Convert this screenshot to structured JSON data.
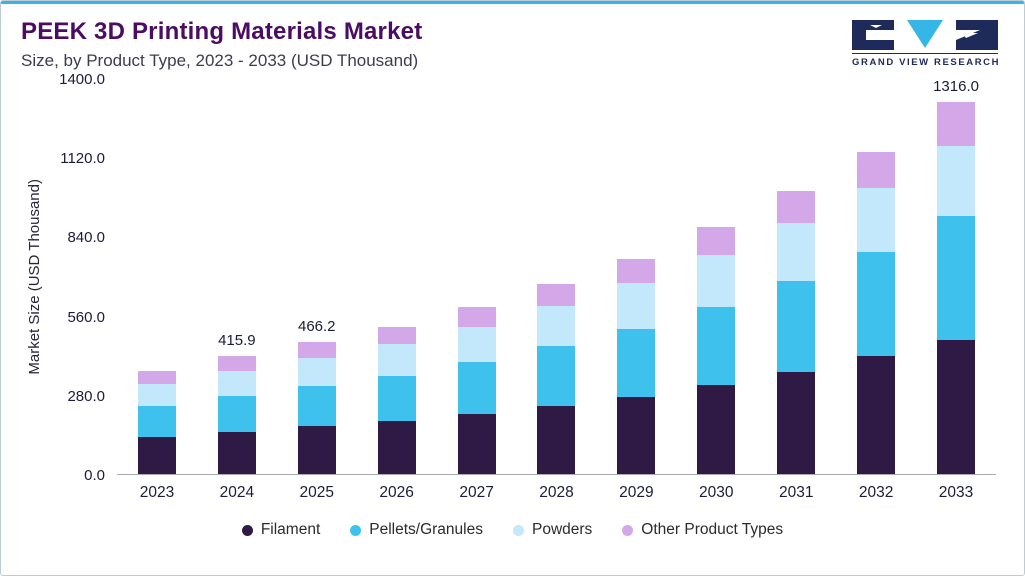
{
  "header": {
    "title": "PEEK 3D Printing Materials Market",
    "subtitle": "Size, by Product Type, 2023 - 2033 (USD Thousand)",
    "brand": "GRAND VIEW RESEARCH"
  },
  "colors": {
    "accent": "#35b6e6",
    "navy": "#1e2a5a",
    "logo_cyan": "#35b6e6"
  },
  "chart_data": {
    "type": "bar",
    "stacked": true,
    "title": "PEEK 3D Printing Materials Market",
    "subtitle": "Size, by Product Type, 2023 - 2033 (USD Thousand)",
    "xlabel": "",
    "ylabel": "Market Size (USD Thousand)",
    "ylim": [
      0,
      1400
    ],
    "yticks": [
      "1400.0",
      "1120.0",
      "840.0",
      "560.0",
      "280.0",
      "0.0"
    ],
    "grid": false,
    "legend_position": "bottom",
    "categories": [
      "2023",
      "2024",
      "2025",
      "2026",
      "2027",
      "2028",
      "2029",
      "2030",
      "2031",
      "2032",
      "2033"
    ],
    "series": [
      {
        "name": "Filament",
        "color": "#2e1a45",
        "values": [
          132,
          150,
          168,
          187,
          212,
          241,
          274,
          315,
          362,
          416,
          474
        ]
      },
      {
        "name": "Pellets/Granules",
        "color": "#3fc1ee",
        "values": [
          110,
          126,
          142,
          160,
          183,
          210,
          240,
          277,
          320,
          370,
          438
        ]
      },
      {
        "name": "Powders",
        "color": "#c3e7fb",
        "values": [
          78,
          89,
          100,
          112,
          126,
          143,
          161,
          184,
          205,
          226,
          246
        ]
      },
      {
        "name": "Other Product Types",
        "color": "#d4a8e8",
        "values": [
          45,
          50.9,
          56.2,
          61,
          69,
          78,
          87,
          99,
          113,
          128,
          158
        ]
      }
    ],
    "bar_labels": [
      "",
      "415.9",
      "466.2",
      "",
      "",
      "",
      "",
      "",
      "",
      "",
      "1316.0"
    ]
  }
}
